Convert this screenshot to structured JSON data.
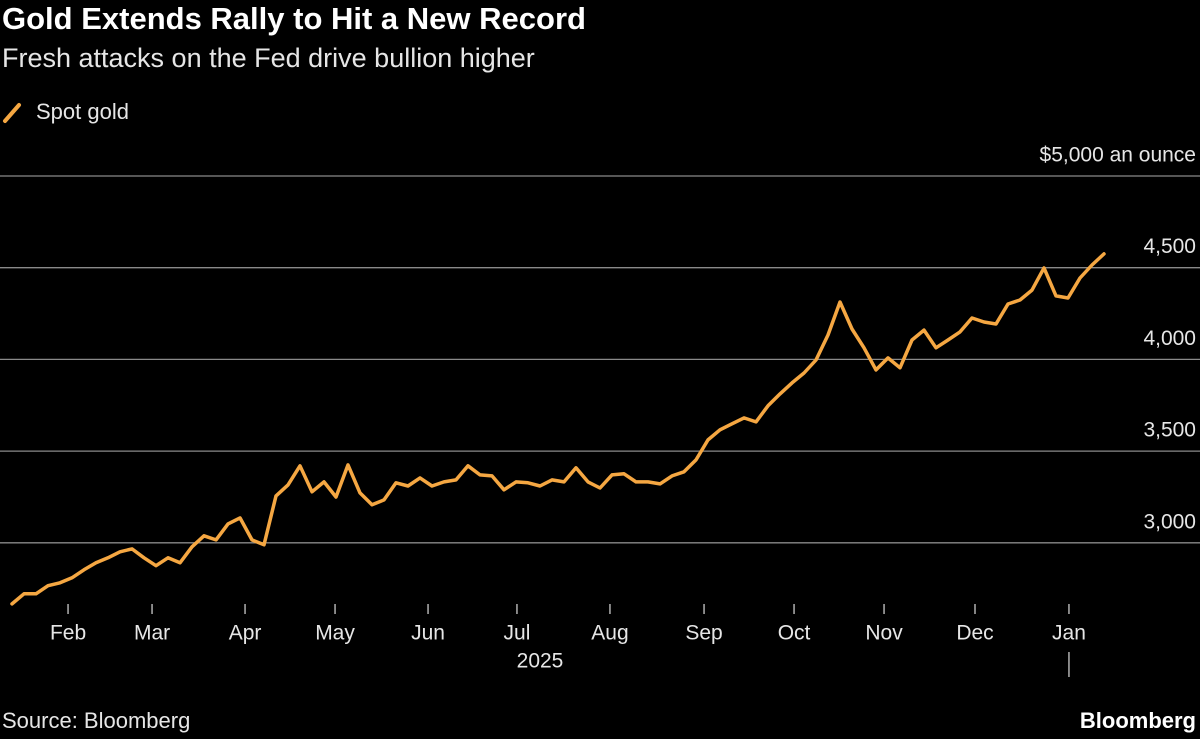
{
  "chart_data": {
    "type": "line",
    "title": "Gold Extends Rally to Hit a New Record",
    "subtitle": "Fresh attacks on the Fed drive bullion higher",
    "source": "Source: Bloomberg",
    "brand": "Bloomberg",
    "x_year_label": "2025",
    "grid": true,
    "legend": "top-left",
    "xlim": [
      0,
      91
    ],
    "xticks": [
      {
        "value": 4.67,
        "label": "Feb"
      },
      {
        "value": 11.67,
        "label": "Mar"
      },
      {
        "value": 19.42,
        "label": "Apr"
      },
      {
        "value": 26.92,
        "label": "May"
      },
      {
        "value": 34.67,
        "label": "Jun"
      },
      {
        "value": 42.08,
        "label": "Jul"
      },
      {
        "value": 49.83,
        "label": "Aug"
      },
      {
        "value": 57.67,
        "label": "Sep"
      },
      {
        "value": 65.17,
        "label": "Oct"
      },
      {
        "value": 72.67,
        "label": "Nov"
      },
      {
        "value": 80.25,
        "label": "Dec"
      },
      {
        "value": 88.08,
        "label": "Jan"
      }
    ],
    "ylim": [
      2650,
      5000
    ],
    "yticks": [
      {
        "value": 3000,
        "label": "3,000"
      },
      {
        "value": 3500,
        "label": "3,500"
      },
      {
        "value": 4000,
        "label": "4,000"
      },
      {
        "value": 4500,
        "label": "4,500"
      },
      {
        "value": 5000,
        "label": "$5,000 an ounce"
      }
    ],
    "series": [
      {
        "name": "Spot gold",
        "color": "#f5a742",
        "values": [
          2667,
          2722,
          2722,
          2766,
          2782,
          2809,
          2853,
          2891,
          2918,
          2951,
          2967,
          2918,
          2875,
          2918,
          2891,
          2978,
          3038,
          3016,
          3103,
          3136,
          3016,
          2989,
          3256,
          3316,
          3420,
          3278,
          3332,
          3250,
          3425,
          3272,
          3207,
          3234,
          3327,
          3310,
          3354,
          3310,
          3332,
          3343,
          3420,
          3370,
          3365,
          3289,
          3332,
          3327,
          3310,
          3343,
          3332,
          3409,
          3332,
          3299,
          3370,
          3376,
          3332,
          3332,
          3321,
          3365,
          3387,
          3452,
          3561,
          3616,
          3649,
          3681,
          3659,
          3747,
          3812,
          3872,
          3926,
          3997,
          4133,
          4313,
          4166,
          4063,
          3943,
          4008,
          3954,
          4106,
          4160,
          4063,
          4106,
          4150,
          4226,
          4204,
          4193,
          4302,
          4324,
          4378,
          4499,
          4346,
          4335,
          4444,
          4515,
          4575
        ]
      }
    ]
  }
}
